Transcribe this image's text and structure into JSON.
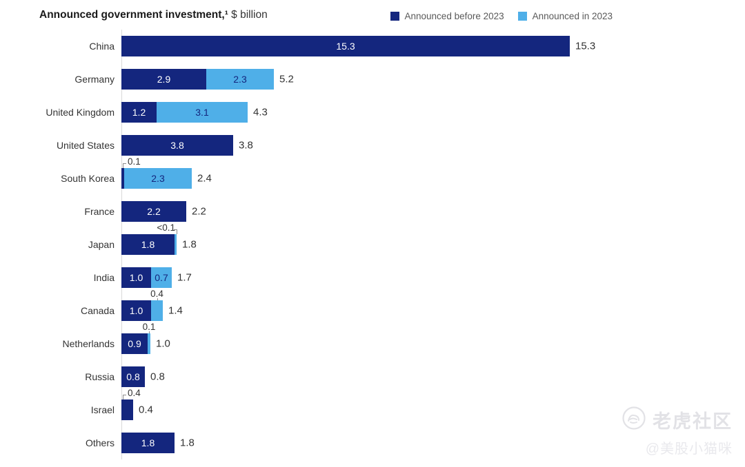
{
  "title": {
    "bold": "Announced government investment,¹",
    "unit": " $ billion"
  },
  "legend": [
    {
      "label": "Announced before 2023",
      "series": "before",
      "color": "#14267e"
    },
    {
      "label": "Announced in 2023",
      "series": "in2023",
      "color": "#4fafe8"
    }
  ],
  "colors": {
    "before": "#14267e",
    "in2023": "#4fafe8",
    "axis": "#d9d9d9",
    "text": "#333333",
    "legend_text": "#595959",
    "annotation_line": "#8c8c8c",
    "watermark": "#e2e2e6"
  },
  "watermark": {
    "brand": "老虎社区",
    "handle": "@美股小猫咪"
  },
  "chart_data": {
    "type": "bar",
    "orientation": "horizontal",
    "stacked": true,
    "title": "Announced government investment,¹ $ billion",
    "xlabel": "",
    "ylabel": "",
    "xlim": [
      0,
      15.3
    ],
    "grid": false,
    "legend_position": "top-right",
    "series_names": [
      "Announced before 2023",
      "Announced in 2023"
    ],
    "categories": [
      "China",
      "Germany",
      "United Kingdom",
      "United States",
      "South Korea",
      "France",
      "Japan",
      "India",
      "Canada",
      "Netherlands",
      "Russia",
      "Israel",
      "Others"
    ],
    "rows": [
      {
        "category": "China",
        "segments": [
          {
            "series": "before",
            "value": 15.3,
            "label": "15.3"
          }
        ],
        "total": 15.3,
        "total_label": "15.3",
        "annotation": null
      },
      {
        "category": "Germany",
        "segments": [
          {
            "series": "before",
            "value": 2.9,
            "label": "2.9"
          },
          {
            "series": "in2023",
            "value": 2.3,
            "label": "2.3"
          }
        ],
        "total": 5.2,
        "total_label": "5.2",
        "annotation": null
      },
      {
        "category": "United Kingdom",
        "segments": [
          {
            "series": "before",
            "value": 1.2,
            "label": "1.2"
          },
          {
            "series": "in2023",
            "value": 3.1,
            "label": "3.1"
          }
        ],
        "total": 4.3,
        "total_label": "4.3",
        "annotation": null
      },
      {
        "category": "United States",
        "segments": [
          {
            "series": "before",
            "value": 3.8,
            "label": "3.8"
          }
        ],
        "total": 3.8,
        "total_label": "3.8",
        "annotation": null
      },
      {
        "category": "South Korea",
        "segments": [
          {
            "series": "before",
            "value": 0.1,
            "label": null
          },
          {
            "series": "in2023",
            "value": 2.3,
            "label": "2.3"
          }
        ],
        "total": 2.4,
        "total_label": "2.4",
        "annotation": {
          "text": "0.1",
          "refers_to": "before",
          "style": "left-bracket"
        }
      },
      {
        "category": "France",
        "segments": [
          {
            "series": "before",
            "value": 2.2,
            "label": "2.2"
          }
        ],
        "total": 2.2,
        "total_label": "2.2",
        "annotation": null
      },
      {
        "category": "Japan",
        "segments": [
          {
            "series": "before",
            "value": 1.8,
            "label": "1.8"
          },
          {
            "series": "in2023",
            "value": 0.05,
            "label": null
          }
        ],
        "total": 1.8,
        "total_label": "1.8",
        "annotation": {
          "text": "<0.1",
          "refers_to": "in2023",
          "style": "right-bracket"
        }
      },
      {
        "category": "India",
        "segments": [
          {
            "series": "before",
            "value": 1.0,
            "label": "1.0"
          },
          {
            "series": "in2023",
            "value": 0.7,
            "label": "0.7"
          }
        ],
        "total": 1.7,
        "total_label": "1.7",
        "annotation": null
      },
      {
        "category": "Canada",
        "segments": [
          {
            "series": "before",
            "value": 1.0,
            "label": "1.0"
          },
          {
            "series": "in2023",
            "value": 0.4,
            "label": null
          }
        ],
        "total": 1.4,
        "total_label": "1.4",
        "annotation": {
          "text": "0.4",
          "refers_to": "in2023",
          "style": "tick"
        }
      },
      {
        "category": "Netherlands",
        "segments": [
          {
            "series": "before",
            "value": 0.9,
            "label": "0.9"
          },
          {
            "series": "in2023",
            "value": 0.1,
            "label": null
          }
        ],
        "total": 1.0,
        "total_label": "1.0",
        "annotation": {
          "text": "0.1",
          "refers_to": "in2023",
          "style": "tick"
        }
      },
      {
        "category": "Russia",
        "segments": [
          {
            "series": "before",
            "value": 0.8,
            "label": "0.8"
          }
        ],
        "total": 0.8,
        "total_label": "0.8",
        "annotation": null
      },
      {
        "category": "Israel",
        "segments": [
          {
            "series": "before",
            "value": 0.4,
            "label": null
          }
        ],
        "total": 0.4,
        "total_label": "0.4",
        "annotation": {
          "text": "0.4",
          "refers_to": "before",
          "style": "left-bracket"
        }
      },
      {
        "category": "Others",
        "segments": [
          {
            "series": "before",
            "value": 1.8,
            "label": "1.8"
          }
        ],
        "total": 1.8,
        "total_label": "1.8",
        "annotation": null
      }
    ]
  }
}
